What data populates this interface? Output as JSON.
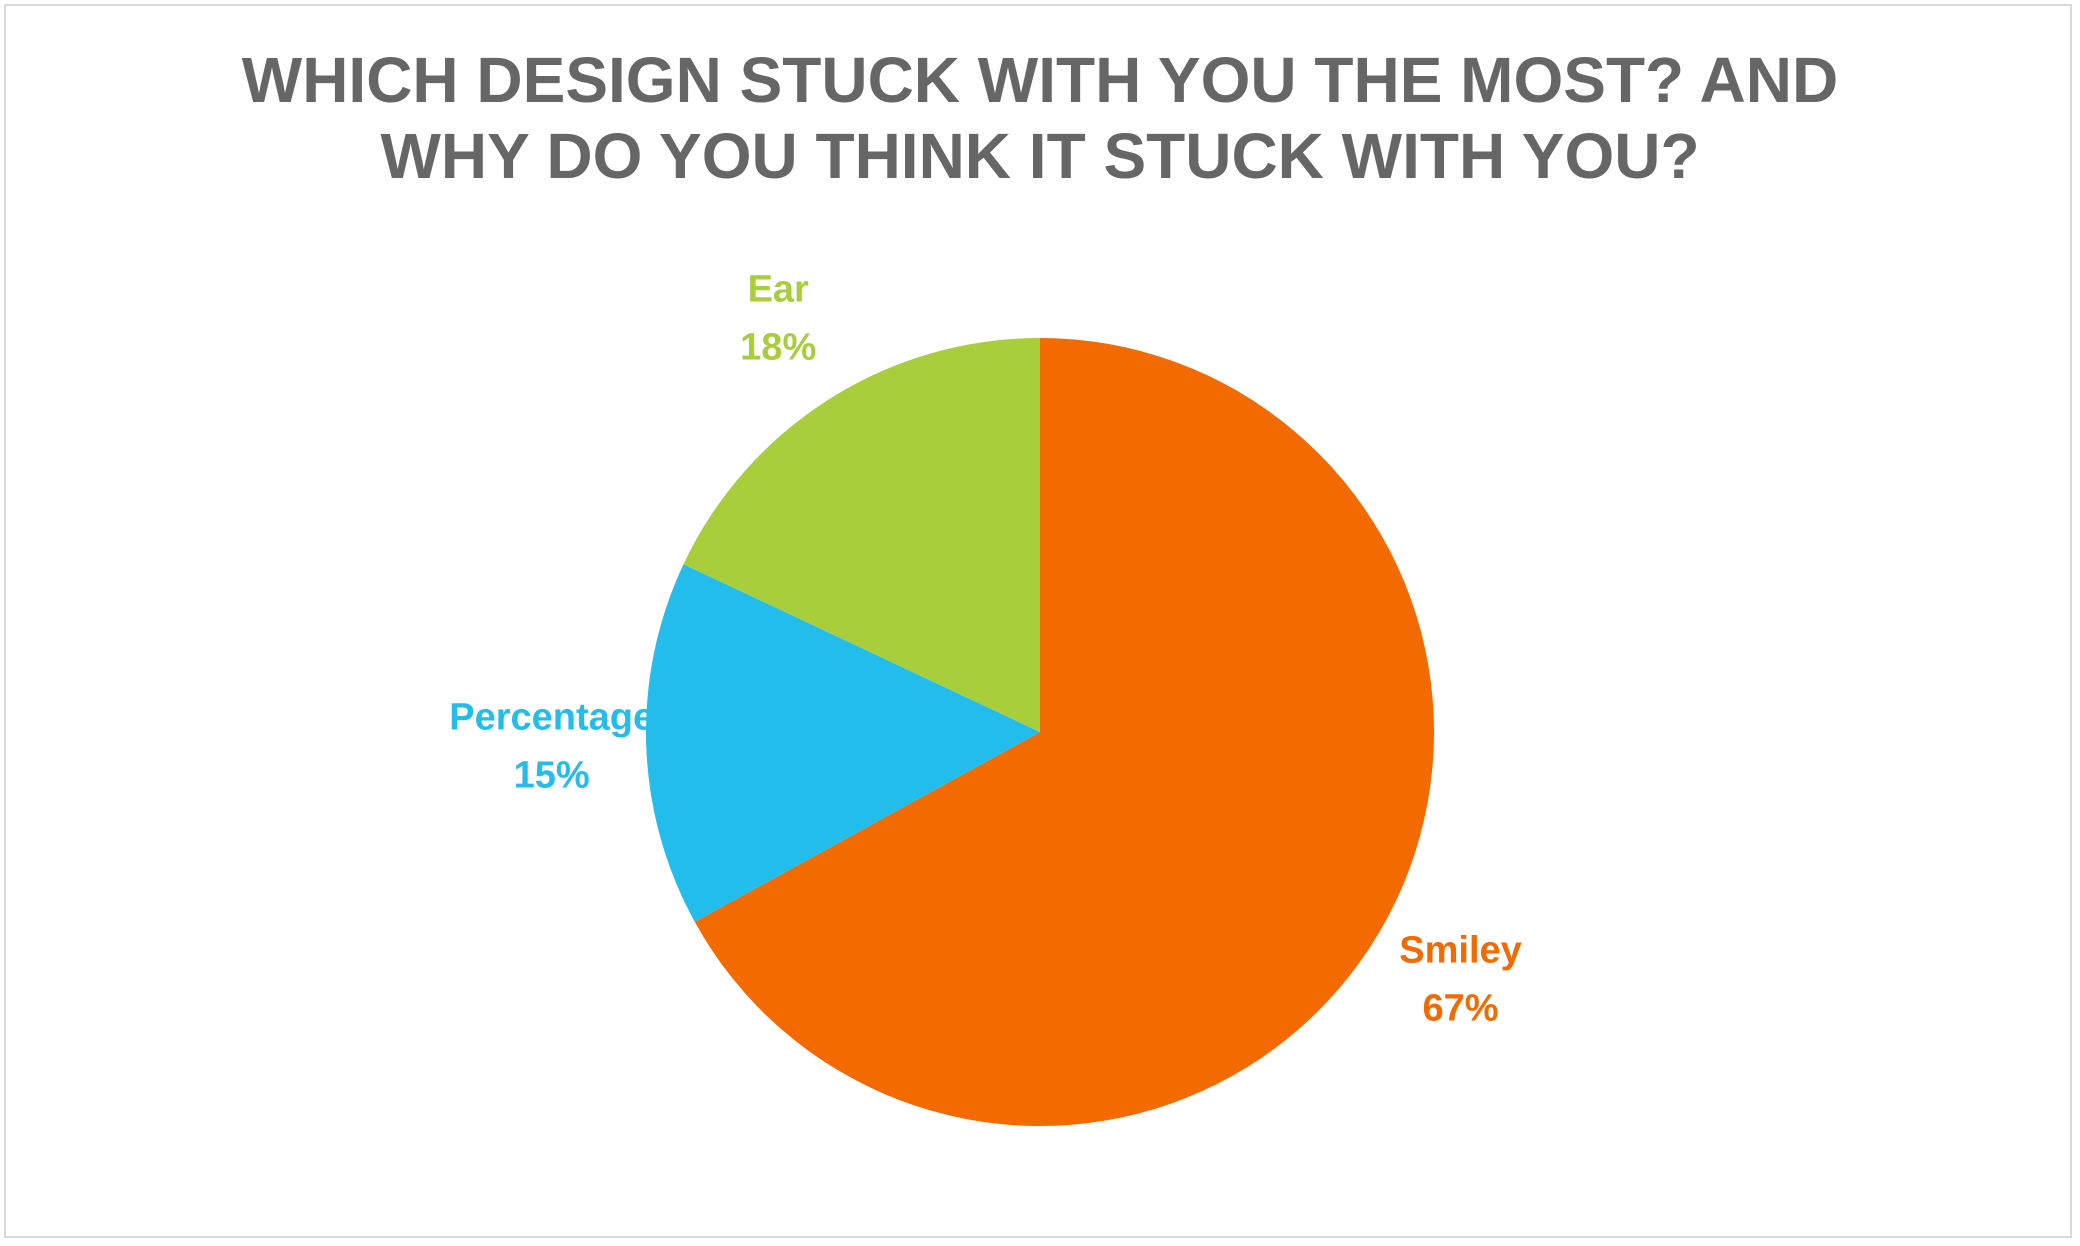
{
  "chart_data": {
    "type": "pie",
    "title": "WHICH DESIGN STUCK WITH YOU THE MOST? AND WHY DO YOU THINK IT STUCK WITH YOU?",
    "categories": [
      "Smiley",
      "Percentage",
      "Ear"
    ],
    "values": [
      67,
      15,
      18
    ],
    "value_labels": [
      "67%",
      "15%",
      "18%"
    ],
    "colors": [
      "#f26a00",
      "#23bdeb",
      "#a8ce3b"
    ]
  }
}
